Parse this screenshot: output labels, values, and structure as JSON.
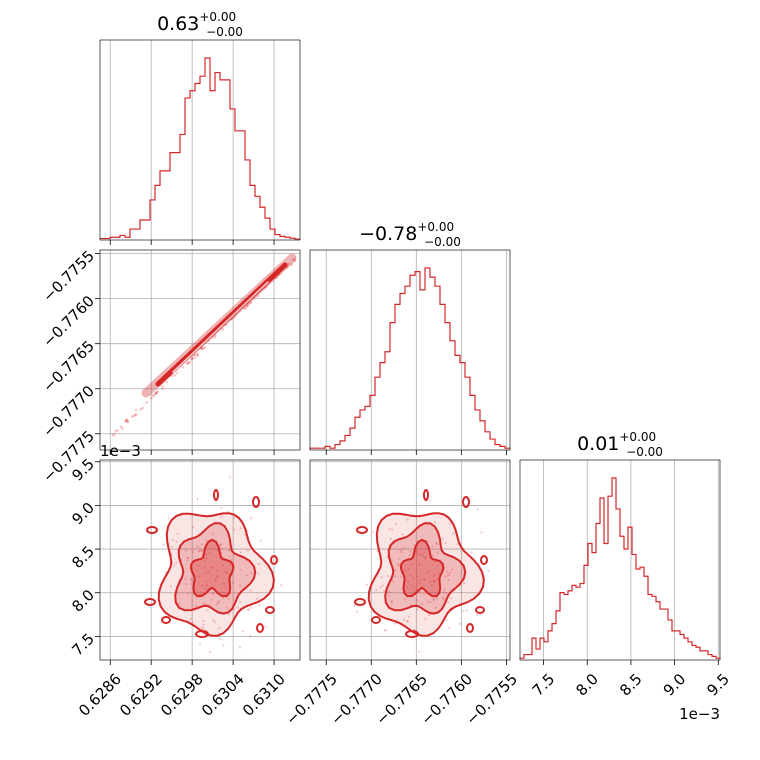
{
  "colors": {
    "main": "#d62728",
    "grid": "#b0b0b0"
  },
  "chart_data": {
    "type": "corner",
    "parameters": [
      {
        "id": "p0",
        "title_value": "0.63",
        "title_plus": "+0.00",
        "title_minus": "−0.00",
        "range": [
          0.62845,
          0.63138
        ],
        "ticks": [
          "0.6286",
          "0.6292",
          "0.6298",
          "0.6304",
          "0.6310"
        ],
        "tick_values": [
          0.6286,
          0.6292,
          0.6298,
          0.6304,
          0.631
        ],
        "offset_text": ""
      },
      {
        "id": "p1",
        "title_value": "−0.78",
        "title_plus": "+0.00",
        "title_minus": "−0.00",
        "range": [
          -0.77768,
          -0.77546
        ],
        "ticks": [
          "−0.7775",
          "−0.7770",
          "−0.7765",
          "−0.7760",
          "−0.7755"
        ],
        "tick_values": [
          -0.7775,
          -0.777,
          -0.7765,
          -0.776,
          -0.7755
        ],
        "offset_text": ""
      },
      {
        "id": "p2",
        "title_value": "0.01",
        "title_plus": "+0.00",
        "title_minus": "−0.00",
        "range": [
          7.23,
          9.52
        ],
        "ticks": [
          "7.5",
          "8.0",
          "8.5",
          "9.0",
          "9.5"
        ],
        "tick_values": [
          7.5,
          8.0,
          8.5,
          9.0,
          9.5
        ],
        "offset_text": "1e−3"
      }
    ],
    "histograms": {
      "p0": [
        0.8,
        0.8,
        1.5,
        1.5,
        2.5,
        1.5,
        6,
        6,
        11,
        11,
        22,
        30,
        38,
        38,
        48,
        48,
        58,
        78,
        82,
        86,
        90,
        100,
        82,
        92,
        88,
        88,
        72,
        60,
        60,
        44,
        30,
        24,
        18,
        12,
        6,
        3,
        2,
        1.5,
        1,
        0.5
      ],
      "p1": [
        1,
        1,
        1,
        2,
        1,
        3,
        5,
        8,
        12,
        18,
        22,
        24,
        30,
        40,
        48,
        54,
        70,
        80,
        86,
        90,
        96,
        98,
        88,
        100,
        95,
        90,
        80,
        70,
        60,
        52,
        48,
        40,
        30,
        22,
        16,
        10,
        6,
        3,
        2,
        1
      ],
      "p2": [
        1,
        3,
        3,
        12,
        6,
        12,
        10,
        16,
        20,
        27,
        37,
        36,
        38,
        41,
        40,
        42,
        52,
        64,
        59,
        75,
        89,
        64,
        90,
        100,
        83,
        68,
        61,
        73,
        58,
        50,
        51,
        46,
        36,
        35,
        32,
        28,
        28,
        22,
        16,
        16,
        14,
        12,
        10,
        8,
        7,
        5,
        5,
        3,
        2,
        1
      ]
    },
    "correlation_p0_p1": 1.0
  }
}
